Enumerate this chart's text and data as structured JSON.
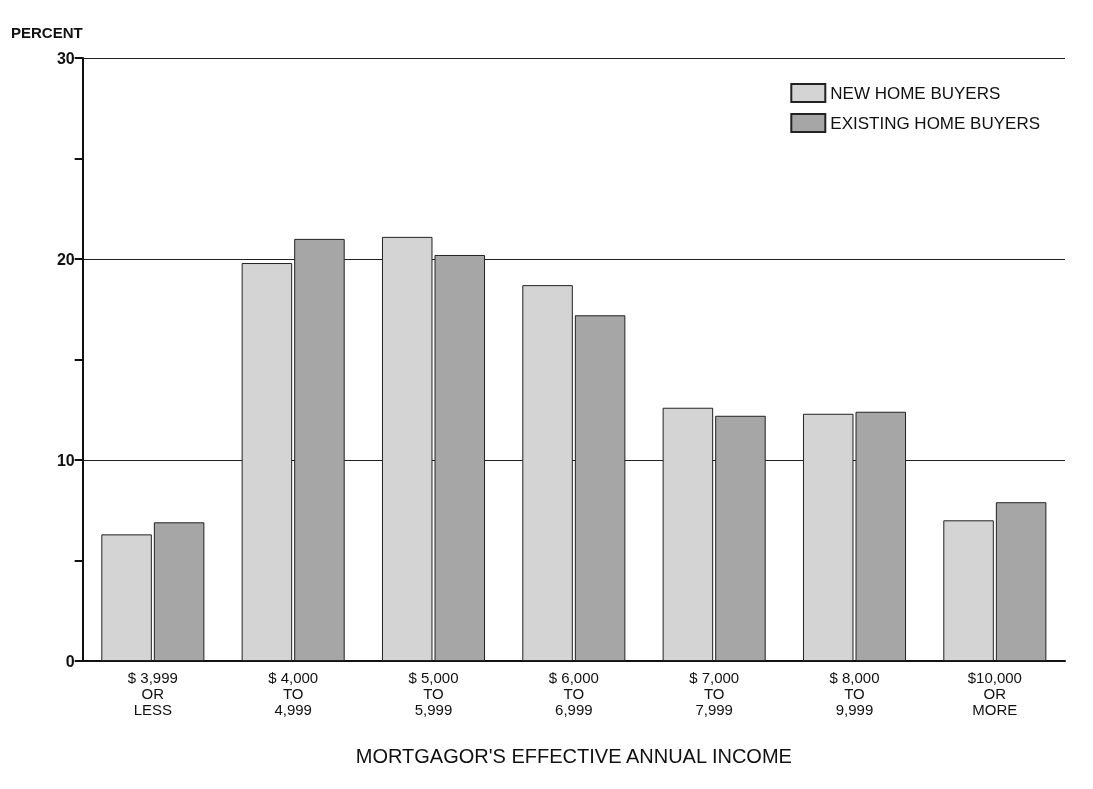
{
  "chart_data": {
    "type": "bar",
    "xlabel": "MORTGAGOR'S EFFECTIVE ANNUAL INCOME",
    "ylabel": "PERCENT",
    "categories": [
      "$ 3,999\nOR\nLESS",
      "$ 4,000\nTO\n4,999",
      "$ 5,000\nTO\n5,999",
      "$ 6,000\nTO\n6,999",
      "$ 7,000\nTO\n7,999",
      "$ 8,000\nTO\n9,999",
      "$10,000\nOR\nMORE"
    ],
    "series": [
      {
        "name": "NEW HOME BUYERS",
        "color": "#d4d4d4",
        "values": [
          6.3,
          19.8,
          21.1,
          18.7,
          12.6,
          12.3,
          7.0
        ]
      },
      {
        "name": "EXISTING HOME BUYERS",
        "color": "#a6a6a6",
        "values": [
          6.9,
          21.0,
          20.2,
          17.2,
          12.2,
          12.4,
          7.9
        ]
      }
    ],
    "ylim": [
      0,
      30
    ],
    "yticks": [
      0,
      {
        "value": 5,
        "label": null
      },
      10,
      {
        "value": 15,
        "label": null
      },
      20,
      {
        "value": 25,
        "label": null
      },
      30
    ],
    "grid": "y",
    "legend": "top right"
  }
}
